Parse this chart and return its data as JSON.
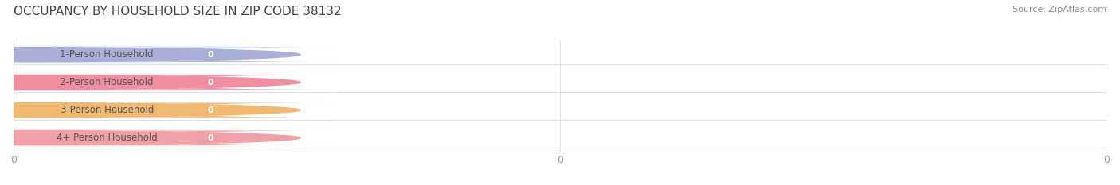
{
  "title": "OCCUPANCY BY HOUSEHOLD SIZE IN ZIP CODE 38132",
  "source": "Source: ZipAtlas.com",
  "categories": [
    "1-Person Household",
    "2-Person Household",
    "3-Person Household",
    "4+ Person Household"
  ],
  "values": [
    0,
    0,
    0,
    0
  ],
  "bar_colors": [
    "#a8b0d8",
    "#ef8fa0",
    "#f0b870",
    "#f0a0a8"
  ],
  "label_bg_colors": [
    "#e8ecf8",
    "#fde8ea",
    "#fdf0e0",
    "#fde8e8"
  ],
  "left_dot_colors": [
    "#a8b0d8",
    "#ef8fa0",
    "#f0b870",
    "#f0a0a8"
  ],
  "background_color": "#ffffff",
  "plot_bg_color": "#f8f8f8",
  "grid_color": "#e0e0e0",
  "title_fontsize": 11,
  "source_fontsize": 8,
  "bar_height": 0.62,
  "tick_label_color": "#999999",
  "label_text_color": "#555555",
  "value_text_color": "#ffffff"
}
